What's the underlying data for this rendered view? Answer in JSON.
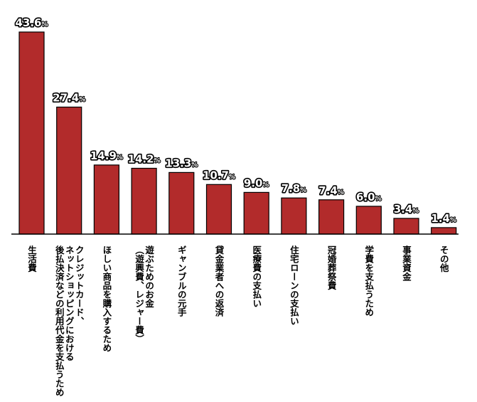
{
  "chart_data": {
    "type": "bar",
    "unit": "%",
    "bar_color": "#b22b2b",
    "bar_stroke": "#000000",
    "axis_color": "#000000",
    "ylim": [
      0,
      43.6
    ],
    "grid": false,
    "categories": [
      [
        "生活費"
      ],
      [
        "クレジットカード、",
        "ネットショッピングにおける",
        "後払決済などの利用代金を支払うため"
      ],
      [
        "ほしい商品を購入するため"
      ],
      [
        "遊ぶためのお金",
        "（遊興費、レジャー費）"
      ],
      [
        "ギャンブルの元手"
      ],
      [
        "貸金業者への返済"
      ],
      [
        "医療費の支払い"
      ],
      [
        "住宅ローンの支払い"
      ],
      [
        "冠婚葬祭費"
      ],
      [
        "学費を支払うため"
      ],
      [
        "事業資金"
      ],
      [
        "その他"
      ]
    ],
    "values": [
      43.6,
      27.4,
      14.9,
      14.2,
      13.3,
      10.7,
      9.0,
      7.8,
      7.4,
      6.0,
      3.4,
      1.4
    ],
    "value_labels": [
      "43.6",
      "27.4",
      "14.9",
      "14.2",
      "13.3",
      "10.7",
      "9.0",
      "7.8",
      "7.4",
      "6.0",
      "3.4",
      "1.4"
    ]
  }
}
